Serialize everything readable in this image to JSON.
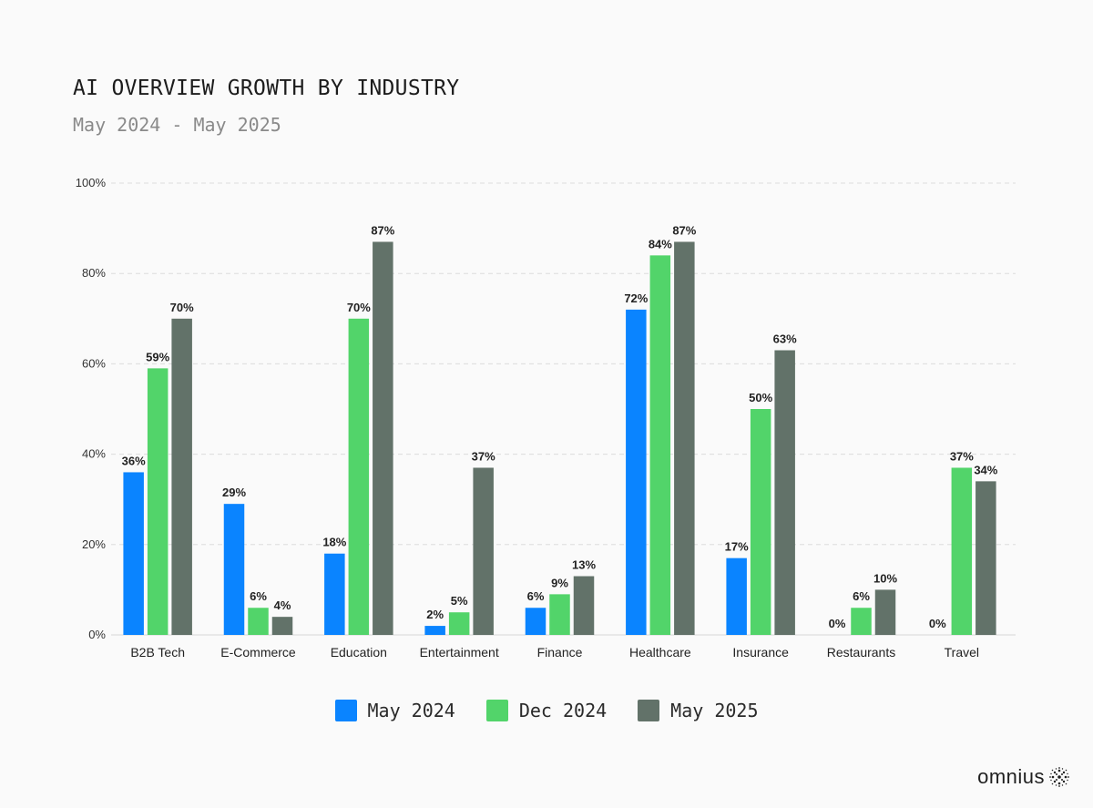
{
  "header": {
    "title": "AI OVERVIEW GROWTH BY INDUSTRY",
    "subtitle": "May 2024 - May 2025"
  },
  "chart_data": {
    "type": "bar",
    "categories": [
      "B2B Tech",
      "E-Commerce",
      "Education",
      "Entertainment",
      "Finance",
      "Healthcare",
      "Insurance",
      "Restaurants",
      "Travel"
    ],
    "series": [
      {
        "name": "May 2024",
        "color": "#0a84ff",
        "values": [
          36,
          29,
          18,
          2,
          6,
          72,
          17,
          0,
          0
        ]
      },
      {
        "name": "Dec 2024",
        "color": "#52d46a",
        "values": [
          59,
          6,
          70,
          5,
          9,
          84,
          50,
          6,
          37
        ]
      },
      {
        "name": "May 2025",
        "color": "#627269",
        "values": [
          70,
          4,
          87,
          37,
          13,
          87,
          63,
          10,
          34
        ]
      }
    ],
    "data_labels": [
      [
        "36%",
        "29%",
        "18%",
        "2%",
        "6%",
        "72%",
        "17%",
        "0%",
        "0%"
      ],
      [
        "59%",
        "6%",
        "70%",
        "5%",
        "9%",
        "84%",
        "50%",
        "6%",
        "37%"
      ],
      [
        "70%",
        "4%",
        "87%",
        "37%",
        "13%",
        "87%",
        "63%",
        "10%",
        "34%"
      ]
    ],
    "bar_visible": [
      [
        true,
        true,
        true,
        true,
        true,
        true,
        true,
        false,
        false
      ],
      [
        true,
        true,
        true,
        true,
        true,
        true,
        true,
        true,
        true
      ],
      [
        true,
        true,
        true,
        true,
        true,
        true,
        true,
        true,
        true
      ]
    ],
    "ylim": [
      0,
      100
    ],
    "yticks": [
      0,
      20,
      40,
      60,
      80,
      100
    ],
    "ytick_labels": [
      "0%",
      "20%",
      "40%",
      "60%",
      "80%",
      "100%"
    ],
    "grid": true,
    "legend_position": "bottom-center",
    "xlabel": "",
    "ylabel": ""
  },
  "legend": {
    "items": [
      {
        "label": "May 2024",
        "color": "#0a84ff"
      },
      {
        "label": "Dec 2024",
        "color": "#52d46a"
      },
      {
        "label": "May 2025",
        "color": "#627269"
      }
    ]
  },
  "logo": {
    "text": "omnius"
  }
}
